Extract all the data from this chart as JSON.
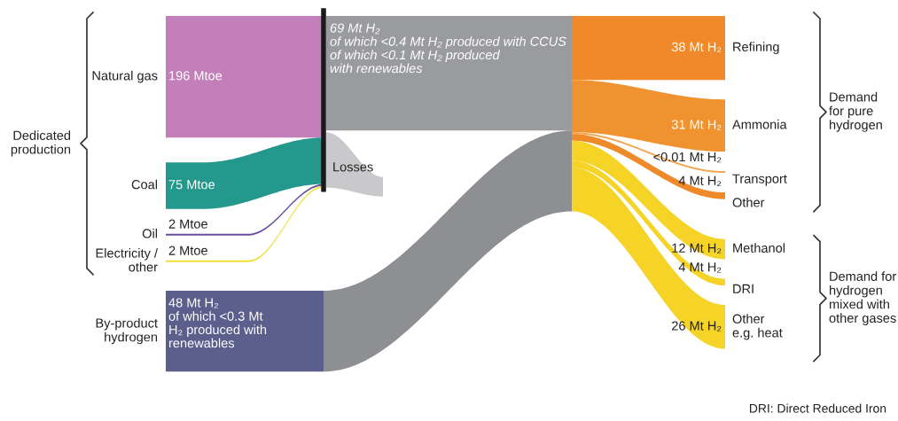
{
  "chart_data": {
    "type": "other",
    "categories": [
      "Natural gas",
      "Coal",
      "Oil",
      "Electricity /\nother",
      "By-product\nhydrogen",
      "Refining",
      "Ammonia",
      "Transport",
      "Other",
      "Methanol",
      "DRI",
      "Other\ne.g. heat"
    ],
    "series": [
      {
        "values": [
          196,
          75,
          2,
          2,
          null,
          null,
          null,
          null,
          null,
          null,
          null,
          null
        ],
        "value_labels": [
          "196 Mtoe",
          "75 Mtoe",
          "2 Mtoe",
          "2 Mtoe",
          null,
          null,
          null,
          null,
          null,
          null,
          null,
          null
        ],
        "colors": [
          "#c27fba",
          "#24988c",
          "#6a4fa0",
          "#f2e03a",
          null,
          null,
          null,
          null,
          null,
          null,
          null,
          null
        ]
      },
      {
        "values": [
          null,
          null,
          null,
          null,
          48,
          null,
          null,
          null,
          null,
          null,
          null,
          null
        ],
        "value_labels": [
          null,
          null,
          null,
          null,
          "48 Mt H₂\nof which <0.3 Mt\nH₂ produced with\nrenewables",
          null,
          null,
          null,
          null,
          null,
          null,
          null
        ],
        "colors": [
          null,
          null,
          null,
          null,
          "#5b5f8c",
          null,
          null,
          null,
          null,
          null,
          null,
          null
        ]
      },
      {
        "values": [
          null,
          null,
          null,
          null,
          null,
          38,
          31,
          0.01,
          4,
          null,
          null,
          null
        ],
        "value_labels": [
          null,
          null,
          null,
          null,
          null,
          "38 Mt H₂",
          "31 Mt H₂",
          "<0.01 Mt H₂",
          "4 Mt H₂",
          null,
          null,
          null
        ],
        "colors": [
          null,
          null,
          null,
          null,
          null,
          "#f0892a",
          "#f0922f",
          "#f2a650",
          "#ee8a2a",
          null,
          null,
          null
        ]
      },
      {
        "values": [
          null,
          null,
          null,
          null,
          null,
          null,
          null,
          null,
          null,
          12,
          4,
          26
        ],
        "value_labels": [
          null,
          null,
          null,
          null,
          null,
          null,
          null,
          null,
          null,
          "12 Mt H₂",
          "4 Mt H₂",
          "26 Mt H₂"
        ],
        "colors": [
          null,
          null,
          null,
          null,
          null,
          null,
          null,
          null,
          null,
          "#f5d327",
          "#f5d327",
          "#f5d327"
        ]
      }
    ],
    "annotations": [
      "Dedicated\nproduction",
      "Demand\nfor pure\nhydrogen",
      "Demand for\nhydrogen\nmixed with\nother gases",
      "69 Mt H₂\nof which <0.4 Mt H₂ produced with CCUS\nof which <0.1 Mt H₂ produced\nwith renewables",
      "Losses",
      "DRI: Direct Reduced Iron"
    ]
  }
}
